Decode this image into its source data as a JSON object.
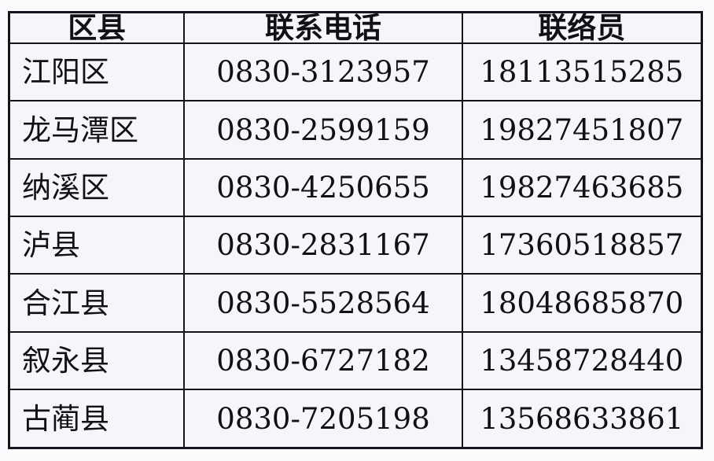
{
  "table": {
    "headers": [
      "区县",
      "联系电话",
      "联络员"
    ],
    "rows": [
      {
        "district": "江阳区",
        "phone": "0830-3123957",
        "liaison": "18113515285"
      },
      {
        "district": "龙马潭区",
        "phone": "0830-2599159",
        "liaison": "19827451807"
      },
      {
        "district": "纳溪区",
        "phone": "0830-4250655",
        "liaison": "19827463685"
      },
      {
        "district": "泸县",
        "phone": "0830-2831167",
        "liaison": "17360518857"
      },
      {
        "district": "合江县",
        "phone": "0830-5528564",
        "liaison": "18048685870"
      },
      {
        "district": "叙永县",
        "phone": "0830-6727182",
        "liaison": "13458728440"
      },
      {
        "district": "古蔺县",
        "phone": "0830-7205198",
        "liaison": "13568633861"
      }
    ],
    "colors": {
      "page_bg": "#fcfcff",
      "cell_bg": "#f6f6fa",
      "border": "#15151f",
      "text": "#101015"
    }
  }
}
